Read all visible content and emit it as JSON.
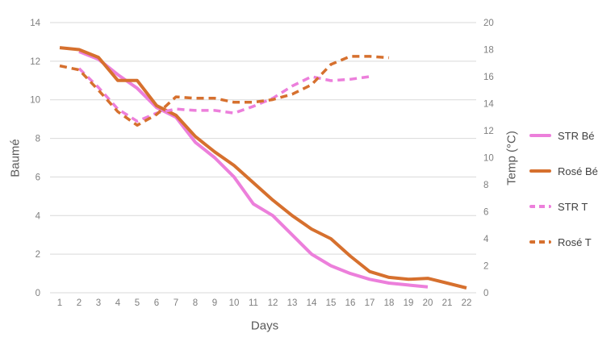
{
  "chart_data": {
    "type": "line",
    "title": "",
    "x_label": "Days",
    "x_ticks": [
      1,
      2,
      3,
      4,
      5,
      6,
      7,
      8,
      9,
      10,
      11,
      12,
      13,
      14,
      15,
      16,
      17,
      18,
      19,
      20,
      21,
      22
    ],
    "grid": "horizontal",
    "grid_color": "#D9D9D9",
    "tick_color": "#7F7F7F",
    "axis_title_color": "#595959",
    "legend_position": "right",
    "y_left": {
      "label": "Baumé",
      "min": 0,
      "max": 14,
      "step": 2
    },
    "y_right": {
      "label": "Temp (°C)",
      "min": 0,
      "max": 20,
      "step": 2
    },
    "series": [
      {
        "name": "STR Bé",
        "axis": "left",
        "style": "solid",
        "color": "#EC7FDB",
        "points": [
          [
            2,
            12.5
          ],
          [
            3,
            12.1
          ],
          [
            4,
            11.3
          ],
          [
            5,
            10.6
          ],
          [
            6,
            9.6
          ],
          [
            7,
            9.1
          ],
          [
            8,
            7.8
          ],
          [
            9,
            7.0
          ],
          [
            10,
            6.0
          ],
          [
            11,
            4.6
          ],
          [
            12,
            4.0
          ],
          [
            13,
            3.0
          ],
          [
            14,
            2.0
          ],
          [
            15,
            1.4
          ],
          [
            16,
            1.0
          ],
          [
            17,
            0.7
          ],
          [
            18,
            0.5
          ],
          [
            19,
            0.4
          ],
          [
            20,
            0.3
          ]
        ]
      },
      {
        "name": "Rosé Bé",
        "axis": "left",
        "style": "solid",
        "color": "#D6702E",
        "points": [
          [
            1,
            12.7
          ],
          [
            2,
            12.6
          ],
          [
            3,
            12.2
          ],
          [
            4,
            11.0
          ],
          [
            5,
            11.0
          ],
          [
            6,
            9.7
          ],
          [
            7,
            9.2
          ],
          [
            8,
            8.1
          ],
          [
            9,
            7.3
          ],
          [
            10,
            6.6
          ],
          [
            11,
            5.7
          ],
          [
            12,
            4.8
          ],
          [
            13,
            4.0
          ],
          [
            14,
            3.3
          ],
          [
            15,
            2.8
          ],
          [
            16,
            1.9
          ],
          [
            17,
            1.1
          ],
          [
            18,
            0.8
          ],
          [
            19,
            0.7
          ],
          [
            20,
            0.75
          ],
          [
            21,
            0.5
          ],
          [
            22,
            0.25
          ]
        ]
      },
      {
        "name": "STR T",
        "axis": "right",
        "style": "dashed",
        "color": "#EC7FDB",
        "points": [
          [
            2,
            16.6
          ],
          [
            3,
            15.2
          ],
          [
            4,
            13.6
          ],
          [
            5,
            12.7
          ],
          [
            6,
            13.3
          ],
          [
            7,
            13.6
          ],
          [
            8,
            13.5
          ],
          [
            9,
            13.5
          ],
          [
            10,
            13.3
          ],
          [
            11,
            13.8
          ],
          [
            12,
            14.4
          ],
          [
            13,
            15.3
          ],
          [
            14,
            16.0
          ],
          [
            15,
            15.7
          ],
          [
            16,
            15.8
          ],
          [
            17,
            16.0
          ]
        ]
      },
      {
        "name": "Rosé T",
        "axis": "right",
        "style": "dashed",
        "color": "#D6702E",
        "points": [
          [
            1,
            16.8
          ],
          [
            2,
            16.5
          ],
          [
            3,
            15.0
          ],
          [
            4,
            13.4
          ],
          [
            5,
            12.4
          ],
          [
            6,
            13.2
          ],
          [
            7,
            14.5
          ],
          [
            8,
            14.4
          ],
          [
            9,
            14.4
          ],
          [
            10,
            14.1
          ],
          [
            11,
            14.1
          ],
          [
            12,
            14.3
          ],
          [
            13,
            14.7
          ],
          [
            14,
            15.4
          ],
          [
            15,
            16.9
          ],
          [
            16,
            17.5
          ],
          [
            17,
            17.5
          ],
          [
            18,
            17.4
          ]
        ]
      }
    ]
  }
}
